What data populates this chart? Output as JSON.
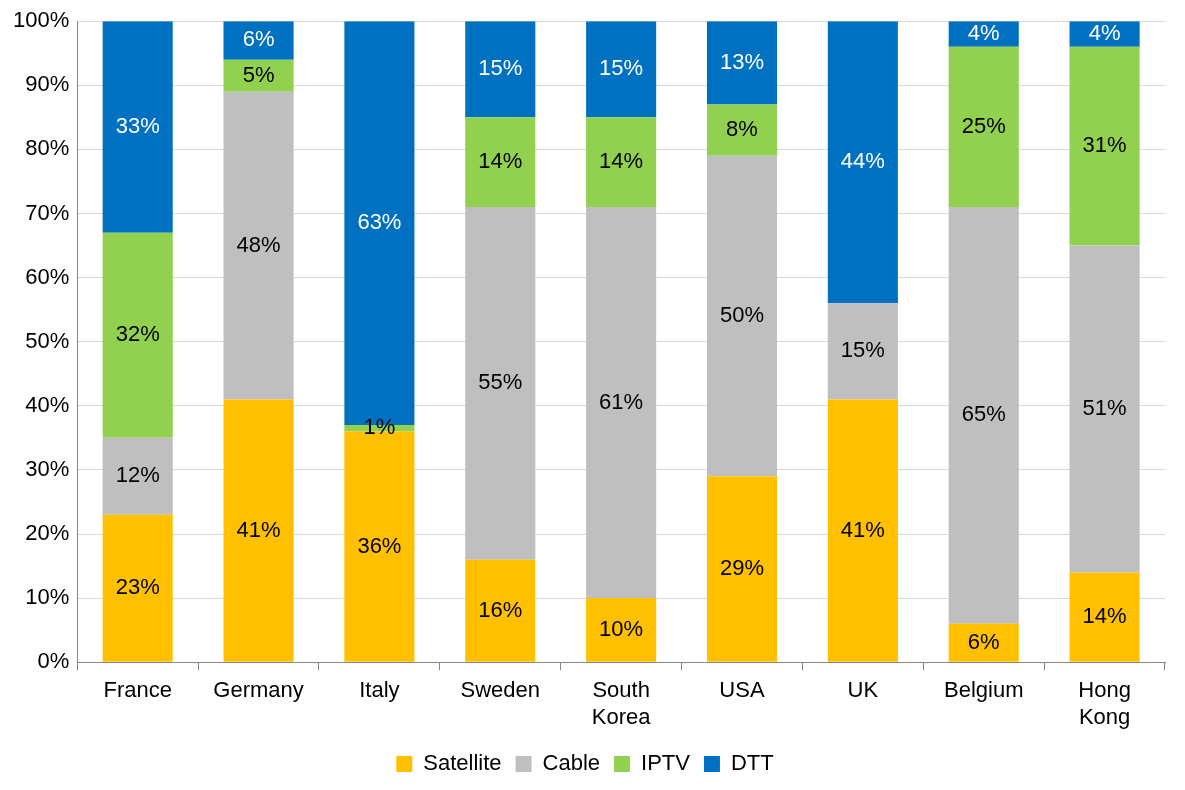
{
  "chart_data": {
    "type": "bar",
    "stacked": true,
    "categories": [
      "France",
      "Germany",
      "Italy",
      "Sweden",
      "South Korea",
      "USA",
      "UK",
      "Belgium",
      "Hong Kong"
    ],
    "series": [
      {
        "name": "Satellite",
        "color": "#ffc000",
        "values": [
          23,
          41,
          36,
          16,
          10,
          29,
          41,
          6,
          14
        ],
        "value_labels": [
          "23%",
          "41%",
          "36%",
          "16%",
          "10%",
          "29%",
          "41%",
          "6%",
          "14%"
        ]
      },
      {
        "name": "Cable",
        "color": "#bfbfbf",
        "values": [
          12,
          48,
          0,
          55,
          61,
          50,
          15,
          65,
          51
        ],
        "value_labels": [
          "12%",
          "48%",
          null,
          "55%",
          "61%",
          "50%",
          "15%",
          "65%",
          "51%"
        ]
      },
      {
        "name": "IPTV",
        "color": "#92d050",
        "values": [
          32,
          5,
          1,
          14,
          14,
          8,
          0,
          25,
          31
        ],
        "value_labels": [
          "32%",
          "5%",
          "1%",
          "14%",
          "14%",
          "8%",
          null,
          "25%",
          "31%"
        ]
      },
      {
        "name": "DTT",
        "color": "#0070c0",
        "values": [
          33,
          6,
          63,
          15,
          15,
          13,
          44,
          4,
          4
        ],
        "value_labels": [
          "33%",
          "6%",
          "63%",
          "15%",
          "15%",
          "13%",
          "44%",
          "4%",
          "4%"
        ]
      }
    ],
    "ylim": [
      0,
      100
    ],
    "yticks": [
      {
        "value": 0,
        "label": "0%"
      },
      {
        "value": 10,
        "label": "10%"
      },
      {
        "value": 20,
        "label": "20%"
      },
      {
        "value": 30,
        "label": "30%"
      },
      {
        "value": 40,
        "label": "40%"
      },
      {
        "value": 50,
        "label": "50%"
      },
      {
        "value": 60,
        "label": "60%"
      },
      {
        "value": 70,
        "label": "70%"
      },
      {
        "value": 80,
        "label": "80%"
      },
      {
        "value": 90,
        "label": "90%"
      },
      {
        "value": 100,
        "label": "100%"
      }
    ],
    "grid": "y",
    "legend": "bottom"
  }
}
